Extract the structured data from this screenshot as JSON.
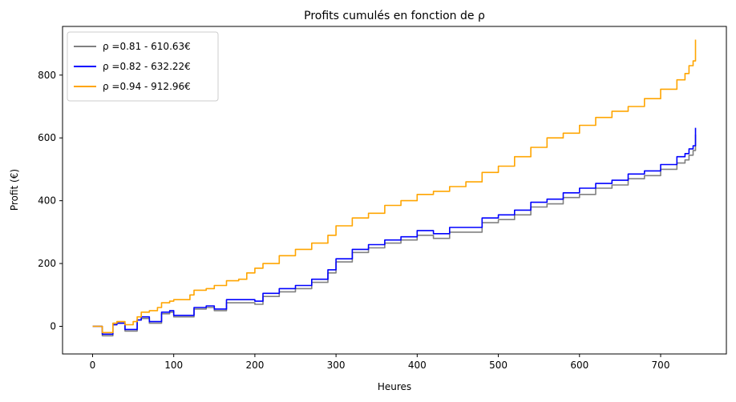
{
  "chart_data": {
    "type": "line",
    "title": "Profits cumulés en fonction de ρ",
    "xlabel": "Heures",
    "ylabel": "Profit (€)",
    "xlim": [
      -37,
      781
    ],
    "ylim": [
      -88,
      955
    ],
    "xticks": [
      0,
      100,
      200,
      300,
      400,
      500,
      600,
      700
    ],
    "yticks": [
      0,
      200,
      400,
      600,
      800
    ],
    "grid": false,
    "legend_position": "top-left",
    "series": [
      {
        "name": "ρ =0.81 - 610.63€",
        "color": "#808080",
        "points": [
          [
            0,
            0
          ],
          [
            8,
            0
          ],
          [
            12,
            -30
          ],
          [
            20,
            -30
          ],
          [
            25,
            5
          ],
          [
            30,
            10
          ],
          [
            40,
            -15
          ],
          [
            50,
            -15
          ],
          [
            55,
            20
          ],
          [
            60,
            25
          ],
          [
            70,
            10
          ],
          [
            80,
            10
          ],
          [
            85,
            40
          ],
          [
            95,
            45
          ],
          [
            100,
            30
          ],
          [
            120,
            30
          ],
          [
            125,
            55
          ],
          [
            140,
            60
          ],
          [
            150,
            50
          ],
          [
            160,
            50
          ],
          [
            165,
            75
          ],
          [
            180,
            75
          ],
          [
            200,
            70
          ],
          [
            210,
            95
          ],
          [
            230,
            110
          ],
          [
            250,
            120
          ],
          [
            270,
            140
          ],
          [
            290,
            170
          ],
          [
            300,
            205
          ],
          [
            310,
            205
          ],
          [
            320,
            235
          ],
          [
            330,
            235
          ],
          [
            340,
            250
          ],
          [
            360,
            265
          ],
          [
            380,
            275
          ],
          [
            400,
            290
          ],
          [
            420,
            280
          ],
          [
            440,
            300
          ],
          [
            460,
            300
          ],
          [
            480,
            330
          ],
          [
            500,
            340
          ],
          [
            520,
            355
          ],
          [
            540,
            380
          ],
          [
            560,
            390
          ],
          [
            580,
            410
          ],
          [
            600,
            420
          ],
          [
            620,
            440
          ],
          [
            640,
            450
          ],
          [
            660,
            470
          ],
          [
            680,
            480
          ],
          [
            700,
            500
          ],
          [
            720,
            520
          ],
          [
            730,
            530
          ],
          [
            735,
            545
          ],
          [
            740,
            560
          ],
          [
            743,
            610.63
          ]
        ]
      },
      {
        "name": "ρ =0.82 - 632.22€",
        "color": "#0000ff",
        "points": [
          [
            0,
            0
          ],
          [
            8,
            0
          ],
          [
            12,
            -25
          ],
          [
            20,
            -25
          ],
          [
            25,
            5
          ],
          [
            30,
            10
          ],
          [
            40,
            -10
          ],
          [
            50,
            -10
          ],
          [
            55,
            20
          ],
          [
            60,
            30
          ],
          [
            70,
            15
          ],
          [
            80,
            15
          ],
          [
            85,
            45
          ],
          [
            95,
            50
          ],
          [
            100,
            35
          ],
          [
            120,
            35
          ],
          [
            125,
            60
          ],
          [
            140,
            65
          ],
          [
            150,
            55
          ],
          [
            160,
            55
          ],
          [
            165,
            85
          ],
          [
            180,
            85
          ],
          [
            200,
            80
          ],
          [
            210,
            105
          ],
          [
            230,
            120
          ],
          [
            250,
            130
          ],
          [
            270,
            150
          ],
          [
            290,
            180
          ],
          [
            300,
            215
          ],
          [
            310,
            215
          ],
          [
            320,
            245
          ],
          [
            330,
            245
          ],
          [
            340,
            260
          ],
          [
            360,
            275
          ],
          [
            380,
            285
          ],
          [
            400,
            305
          ],
          [
            420,
            295
          ],
          [
            440,
            315
          ],
          [
            460,
            315
          ],
          [
            480,
            345
          ],
          [
            500,
            355
          ],
          [
            520,
            370
          ],
          [
            540,
            395
          ],
          [
            560,
            405
          ],
          [
            580,
            425
          ],
          [
            600,
            440
          ],
          [
            620,
            455
          ],
          [
            640,
            465
          ],
          [
            660,
            485
          ],
          [
            680,
            495
          ],
          [
            700,
            515
          ],
          [
            720,
            540
          ],
          [
            730,
            550
          ],
          [
            735,
            565
          ],
          [
            740,
            575
          ],
          [
            743,
            632.22
          ]
        ]
      },
      {
        "name": "ρ =0.94 - 912.96€",
        "color": "#ffa500",
        "points": [
          [
            0,
            0
          ],
          [
            8,
            0
          ],
          [
            12,
            -20
          ],
          [
            20,
            -20
          ],
          [
            25,
            10
          ],
          [
            30,
            15
          ],
          [
            40,
            5
          ],
          [
            50,
            15
          ],
          [
            55,
            30
          ],
          [
            60,
            45
          ],
          [
            70,
            50
          ],
          [
            80,
            60
          ],
          [
            85,
            75
          ],
          [
            95,
            80
          ],
          [
            100,
            85
          ],
          [
            120,
            100
          ],
          [
            125,
            115
          ],
          [
            140,
            120
          ],
          [
            150,
            130
          ],
          [
            160,
            130
          ],
          [
            165,
            145
          ],
          [
            180,
            150
          ],
          [
            190,
            170
          ],
          [
            200,
            185
          ],
          [
            210,
            200
          ],
          [
            230,
            225
          ],
          [
            250,
            245
          ],
          [
            270,
            265
          ],
          [
            290,
            290
          ],
          [
            300,
            320
          ],
          [
            310,
            320
          ],
          [
            320,
            345
          ],
          [
            330,
            345
          ],
          [
            340,
            360
          ],
          [
            360,
            385
          ],
          [
            380,
            400
          ],
          [
            400,
            420
          ],
          [
            420,
            430
          ],
          [
            440,
            445
          ],
          [
            460,
            460
          ],
          [
            480,
            490
          ],
          [
            500,
            510
          ],
          [
            520,
            540
          ],
          [
            540,
            570
          ],
          [
            560,
            600
          ],
          [
            580,
            615
          ],
          [
            600,
            640
          ],
          [
            620,
            665
          ],
          [
            640,
            685
          ],
          [
            660,
            700
          ],
          [
            680,
            725
          ],
          [
            700,
            755
          ],
          [
            720,
            785
          ],
          [
            730,
            805
          ],
          [
            735,
            830
          ],
          [
            740,
            845
          ],
          [
            743,
            912.96
          ]
        ]
      }
    ]
  }
}
